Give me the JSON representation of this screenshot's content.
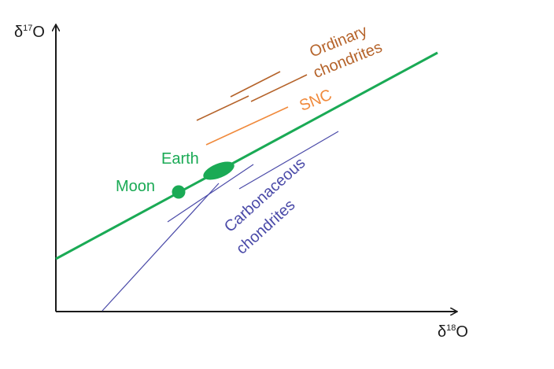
{
  "axes": {
    "y_label_base": "δ",
    "y_label_sup": "17",
    "y_label_elem": "O",
    "x_label_base": "δ",
    "x_label_sup": "18",
    "x_label_elem": "O"
  },
  "labels": {
    "ordinary_line1": "Ordinary",
    "ordinary_line2": "chondrites",
    "snc": "SNC",
    "earth": "Earth",
    "moon": "Moon",
    "carbonaceous_line1": "Carbonaceous",
    "carbonaceous_line2": "chondrites"
  },
  "colors": {
    "axis": "#1a1a1a",
    "terrestrial": "#1aaa55",
    "ordinary": "#b5632a",
    "snc": "#f08a3c",
    "carbonaceous": "#4a4aa8"
  }
}
